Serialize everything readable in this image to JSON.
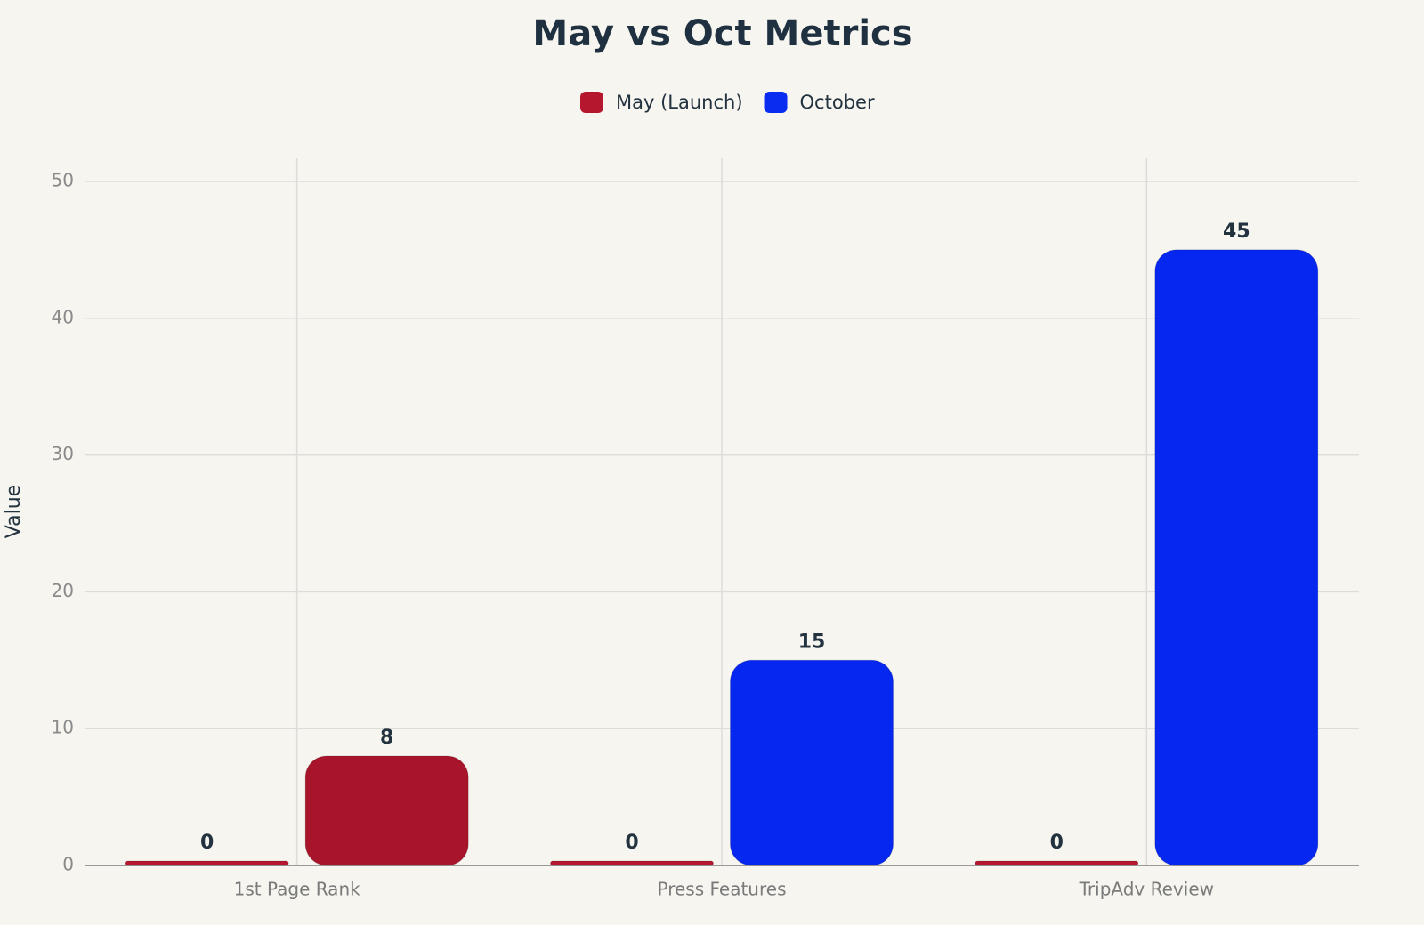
{
  "chart_data": {
    "type": "bar",
    "title": "May vs Oct Metrics",
    "ylabel": "Value",
    "categories": [
      "1st Page Rank",
      "Press Features",
      "TripAdv Review"
    ],
    "series": [
      {
        "name": "May (Launch)",
        "color": "#b5182e",
        "values": [
          0,
          0,
          0
        ]
      },
      {
        "name": "October",
        "color": "#0a2cf0",
        "values": [
          8,
          15,
          45
        ],
        "colors": [
          "#a8152a",
          "#0627f0",
          "#0627f0"
        ]
      }
    ],
    "ylim": [
      0,
      50
    ],
    "yticks": [
      0,
      10,
      20,
      30,
      40,
      50
    ],
    "grid": true,
    "legend": "top"
  }
}
